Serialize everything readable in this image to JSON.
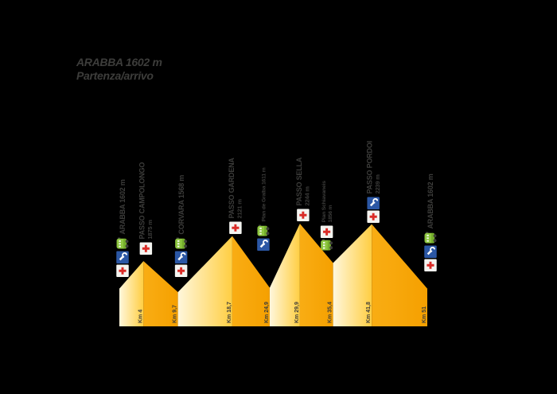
{
  "title": {
    "line1": "ARABBA 1602 m",
    "line2": "Partenza/arrivo"
  },
  "colors": {
    "background": "#000000",
    "text_gray": "#3d3d3b",
    "climb_light": "#fff7dc",
    "climb_deep": "#ffce42",
    "descent_light": "#f9ad14",
    "descent_deep": "#f5a000",
    "medical_red": "#da2c27",
    "medical_bg": "#f4f4f0",
    "mechanic_blue": "#2b57a5",
    "refreshment_green": "#8dc63f",
    "refreshment_dark_green": "#74ad2b",
    "icon_dark": "#3c3c38"
  },
  "chart_data": {
    "type": "area",
    "title": "ARABBA 1602 m — Partenza/arrivo",
    "xlabel": "Km",
    "ylabel": "m",
    "x_km": [
      0,
      4,
      9.7,
      18.7,
      24.9,
      29.9,
      35.4,
      41.8,
      51
    ],
    "elevations_m": [
      1602,
      1875,
      1568,
      2121,
      1611,
      2244,
      1856,
      2239,
      1602
    ],
    "x_range_km": [
      0,
      51
    ],
    "grid": false,
    "legend": false,
    "waypoints": [
      {
        "name": "ARABBA",
        "elevation_m": 1602,
        "km": 0,
        "km_label": "",
        "style": "major",
        "lines": [
          "ARABBA 1602 m"
        ],
        "icons": [
          "refreshment",
          "mechanic",
          "medical"
        ]
      },
      {
        "name": "PASSO CAMPOLONGO",
        "elevation_m": 1875,
        "km": 4,
        "km_label": "Km 4",
        "style": "major",
        "lines": [
          "PASSO CAMPOLONGO",
          "1875 m"
        ],
        "icons": [
          "medical"
        ]
      },
      {
        "name": "CORVARA",
        "elevation_m": 1568,
        "km": 9.7,
        "km_label": "Km 9,7",
        "style": "major",
        "lines": [
          "CORVARA 1568 m"
        ],
        "icons": [
          "refreshment",
          "mechanic",
          "medical"
        ]
      },
      {
        "name": "PASSO GARDENA",
        "elevation_m": 2121,
        "km": 18.7,
        "km_label": "Km 18,7",
        "style": "major",
        "lines": [
          "PASSO GARDENA",
          "2121 m"
        ],
        "icons": [
          "medical"
        ]
      },
      {
        "name": "Plan de Gralba",
        "elevation_m": 1611,
        "km": 24.9,
        "km_label": "Km 24,9",
        "style": "minor",
        "lines": [
          "Plan de Gralba 1611 m"
        ],
        "icons": [
          "refreshment",
          "mechanic"
        ]
      },
      {
        "name": "PASSO SELLA",
        "elevation_m": 2244,
        "km": 29.9,
        "km_label": "Km 29,9",
        "style": "major",
        "lines": [
          "PASSO SELLA",
          "2244 m"
        ],
        "icons": [
          "medical"
        ]
      },
      {
        "name": "Pian Schiavaneis",
        "elevation_m": 1856,
        "km": 35.4,
        "km_label": "Km 35,4",
        "style": "minor",
        "lines": [
          "Pian Schiavaneis",
          "1856 m"
        ],
        "icons": [
          "medical",
          "refreshment"
        ]
      },
      {
        "name": "PASSO PORDOI",
        "elevation_m": 2239,
        "km": 41.8,
        "km_label": "Km 41,8",
        "style": "major",
        "lines": [
          "PASSO PORDOI",
          "2239 m"
        ],
        "icons": [
          "mechanic",
          "medical"
        ]
      },
      {
        "name": "ARABBA",
        "elevation_m": 1602,
        "km": 51,
        "km_label": "Km 51",
        "style": "major",
        "lines": [
          "ARABBA 1602 m"
        ],
        "icons": [
          "refreshment",
          "mechanic",
          "medical"
        ]
      }
    ]
  }
}
